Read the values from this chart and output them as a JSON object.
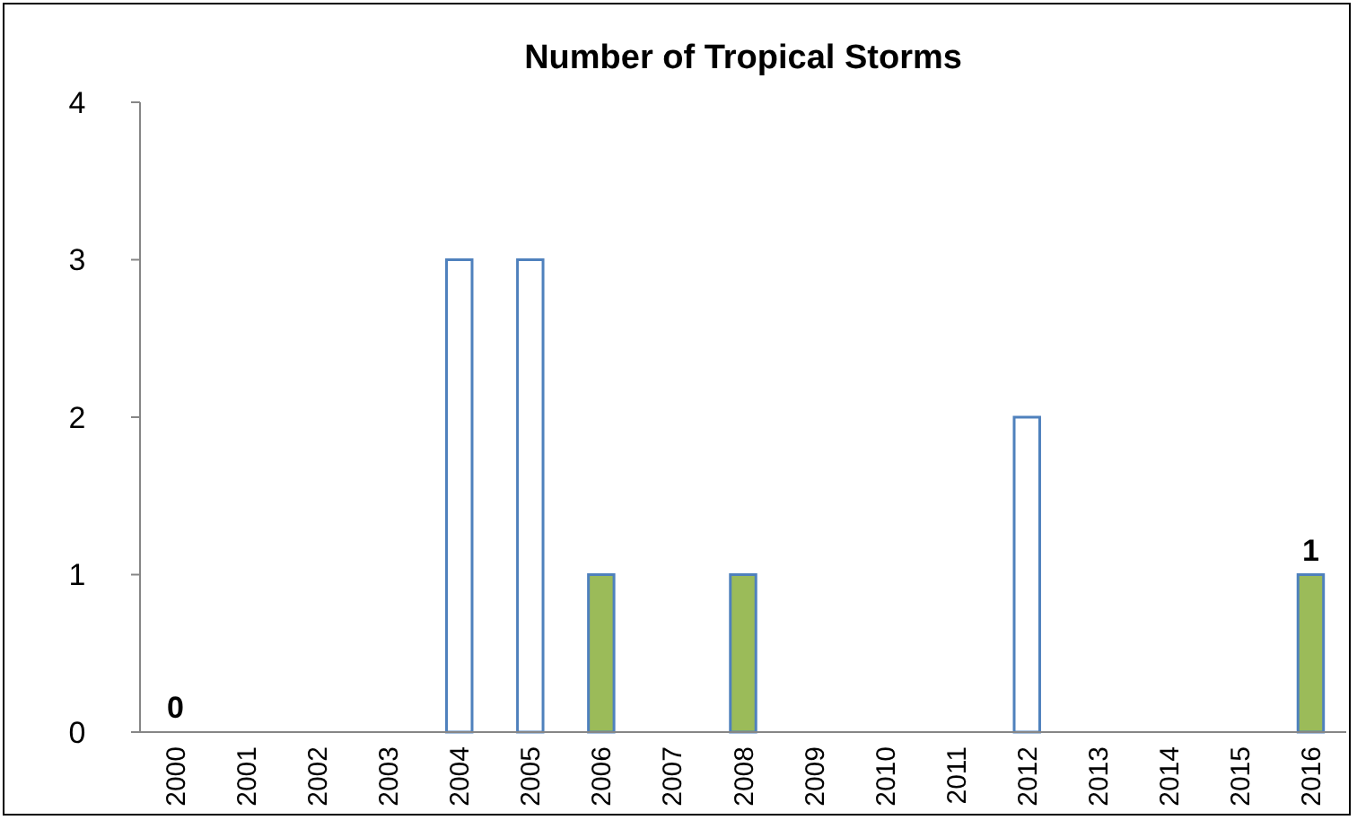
{
  "chart_data": {
    "type": "bar",
    "title": "Number of Tropical Storms",
    "categories": [
      "2000",
      "2001",
      "2002",
      "2003",
      "2004",
      "2005",
      "2006",
      "2007",
      "2008",
      "2009",
      "2010",
      "2011",
      "2012",
      "2013",
      "2014",
      "2015",
      "2016"
    ],
    "values": [
      0,
      0,
      0,
      0,
      3,
      3,
      1,
      0,
      1,
      0,
      0,
      0,
      2,
      0,
      0,
      0,
      1
    ],
    "colors": [
      "#ffffff",
      "#ffffff",
      "#ffffff",
      "#ffffff",
      "#ffffff",
      "#ffffff",
      "#9bbb59",
      "#ffffff",
      "#9bbb59",
      "#ffffff",
      "#ffffff",
      "#ffffff",
      "#ffffff",
      "#ffffff",
      "#ffffff",
      "#ffffff",
      "#9bbb59"
    ],
    "value_labels": [
      "0",
      null,
      null,
      null,
      null,
      null,
      null,
      null,
      null,
      null,
      null,
      null,
      null,
      null,
      null,
      null,
      "1"
    ],
    "ylim": [
      0,
      4
    ],
    "yticks": [
      0,
      1,
      2,
      3,
      4
    ],
    "grid": false
  }
}
